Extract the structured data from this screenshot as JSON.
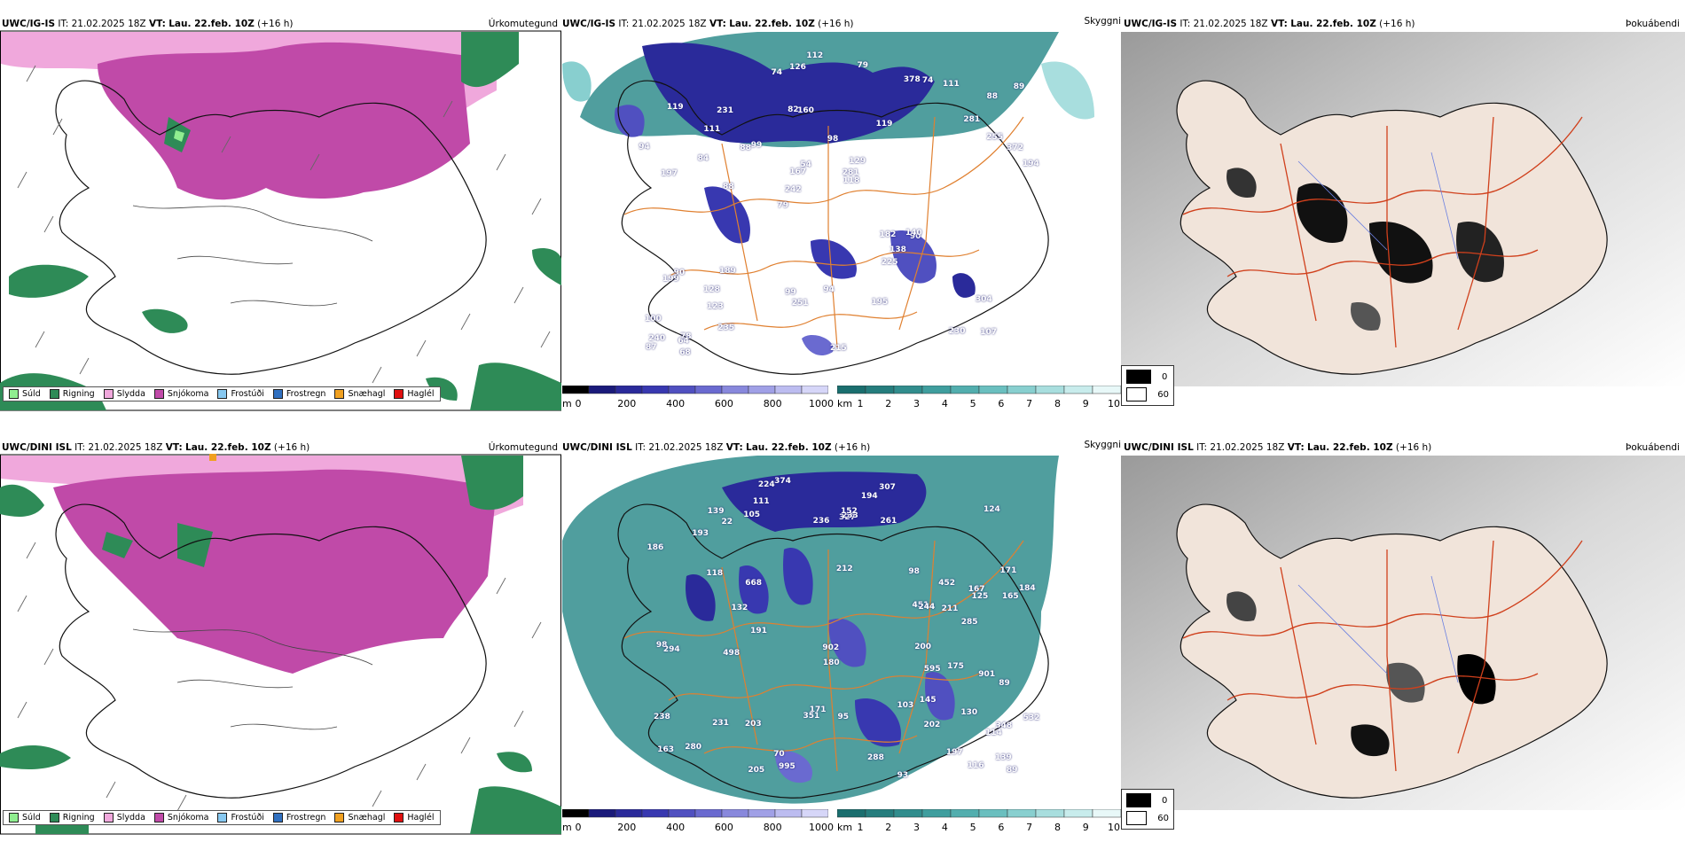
{
  "rows": [
    {
      "model": "UWC/IG-IS",
      "it_label": "IT:",
      "it_value": "21.02.2025 18Z",
      "vt_label": "VT:",
      "vt_value": "Lau. 22.feb. 10Z",
      "lead": "(+16 h)",
      "precip_title": "Úrkomutegund",
      "vis_title": "Skyggni",
      "fog_title": "Þokuábendi",
      "cloud_labels": [
        "107",
        "197",
        "88",
        "79",
        "119",
        "78",
        "82",
        "98",
        "90",
        "99",
        "100",
        "123",
        "160",
        "129",
        "90",
        "119",
        "126",
        "194",
        "182",
        "255",
        "242",
        "99",
        "167",
        "231",
        "378",
        "189",
        "230",
        "304",
        "140",
        "215",
        "88",
        "84",
        "225",
        "235",
        "372",
        "281",
        "240",
        "251",
        "118",
        "199",
        "281",
        "89",
        "138",
        "195",
        "128",
        "68",
        "87",
        "94",
        "111",
        "112",
        "88",
        "94",
        "111",
        "74",
        "64",
        "79",
        "74",
        "54"
      ]
    },
    {
      "model": "UWC/DINI ISL",
      "it_label": "IT:",
      "it_value": "21.02.2025 18Z",
      "vt_label": "VT:",
      "vt_value": "Lau. 22.feb. 10Z",
      "lead": "(+16 h)",
      "precip_title": "Úrkomutegund",
      "vis_title": "Skyggni",
      "fog_title": "Þokuábendi",
      "cloud_labels": [
        "130",
        "171",
        "348",
        "212",
        "163",
        "111",
        "167",
        "203",
        "124",
        "118",
        "165",
        "186",
        "285",
        "995",
        "238",
        "193",
        "114",
        "105",
        "171",
        "125",
        "98",
        "294",
        "288",
        "451",
        "70",
        "351",
        "194",
        "261",
        "98",
        "532",
        "498",
        "202",
        "205",
        "902",
        "901",
        "197",
        "244",
        "236",
        "116",
        "191",
        "175",
        "211",
        "327",
        "132",
        "89",
        "595",
        "280",
        "307",
        "668",
        "452",
        "231",
        "180",
        "233",
        "184",
        "103",
        "200",
        "224",
        "139",
        "93",
        "152",
        "374",
        "145",
        "89",
        "95",
        "22",
        "139"
      ]
    }
  ],
  "precip_legend": [
    {
      "label": "Súld",
      "color": "#90ee90"
    },
    {
      "label": "Rigning",
      "color": "#2e8b57"
    },
    {
      "label": "Slydda",
      "color": "#f0a8dc"
    },
    {
      "label": "Snjókoma",
      "color": "#c04aa8"
    },
    {
      "label": "Frostúði",
      "color": "#87c8f0"
    },
    {
      "label": "Frostregn",
      "color": "#3070c0"
    },
    {
      "label": "Snæhagl",
      "color": "#f0a020"
    },
    {
      "label": "Haglél",
      "color": "#e01010"
    }
  ],
  "cloud_bar": {
    "unit": "m",
    "ticks": [
      "0",
      "200",
      "400",
      "600",
      "800",
      "1000"
    ],
    "colors": [
      "#000000",
      "#1a1a7a",
      "#2a2a9a",
      "#3838b0",
      "#5050c0",
      "#6a6ad0",
      "#8888dc",
      "#a0a0e6",
      "#bcbcf0",
      "#d6d6f8"
    ]
  },
  "vis_bar": {
    "unit": "km",
    "ticks": [
      "1",
      "2",
      "3",
      "4",
      "5",
      "6",
      "7",
      "8",
      "9",
      "10"
    ],
    "colors": [
      "#1a6e6e",
      "#257d7d",
      "#318d8d",
      "#3f9e9e",
      "#52aeae",
      "#6abfbf",
      "#88cfcf",
      "#a8dede",
      "#c8ecec",
      "#e8f8f8"
    ]
  },
  "fog_legend": [
    {
      "label": "0",
      "color": "#000000"
    },
    {
      "label": "60",
      "color": "#ffffff"
    }
  ]
}
